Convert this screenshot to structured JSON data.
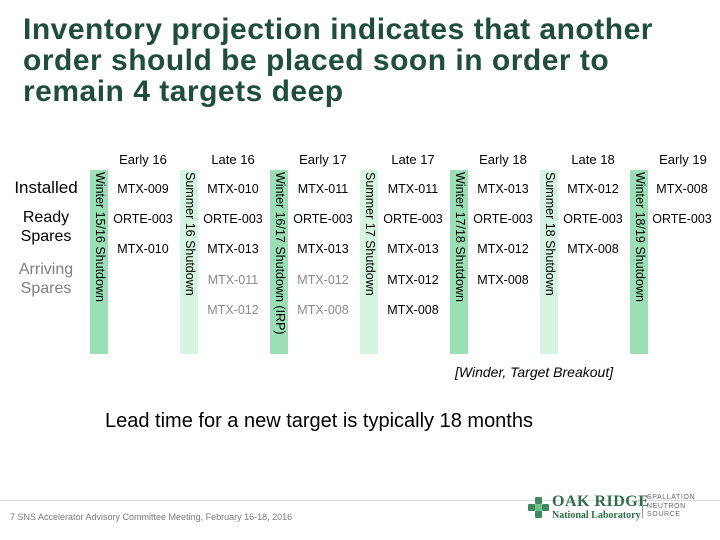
{
  "title": "Inventory projection indicates that another order should be placed soon in order to remain 4 targets deep",
  "row_labels": {
    "installed": "Installed",
    "ready": "Ready Spares",
    "arriving": "Arriving Spares"
  },
  "columns": [
    "Early 16",
    "Late 16",
    "Early 17",
    "Late 17",
    "Early 18",
    "Late 18",
    "Early 19"
  ],
  "shutdowns": [
    "Winter 15/16 Shutdown",
    "Summer 16 Shutdown",
    "Winter 16/17 Shutdown (IRP)",
    "Summer 17 Shutdown",
    "Winter 17/18 Shutdown",
    "Summer 18 Shutdown",
    "Winter 18/19 Shutdown"
  ],
  "grid": [
    [
      "MTX-009",
      "ORTE-003",
      "MTX-010",
      "",
      ""
    ],
    [
      "MTX-010",
      "ORTE-003",
      "MTX-013",
      "MTX-011",
      "MTX-012"
    ],
    [
      "MTX-011",
      "ORTE-003",
      "MTX-013",
      "MTX-012",
      "MTX-008"
    ],
    [
      "MTX-011",
      "ORTE-003",
      "MTX-013",
      "MTX-012",
      "MTX-008"
    ],
    [
      "MTX-013",
      "ORTE-003",
      "MTX-012",
      "MTX-008",
      ""
    ],
    [
      "MTX-012",
      "ORTE-003",
      "MTX-008",
      "",
      ""
    ],
    [
      "MTX-008",
      "ORTE-003",
      "",
      "",
      ""
    ]
  ],
  "note": "[Winder, Target Breakout]",
  "lead_time": "Lead time for a new target is typically 18 months",
  "footer": "7   SNS Accelerator Advisory Committee Meeting, February 16-18, 2016",
  "logo": {
    "org": "OAK RIDGE",
    "lab": "National Laboratory",
    "dept": "SPALLATION NEUTRON SOURCE"
  }
}
